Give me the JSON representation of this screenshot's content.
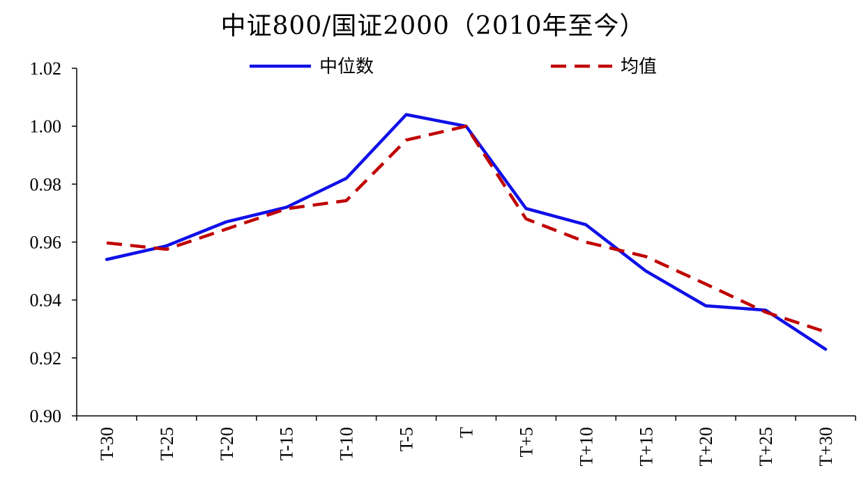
{
  "chart_data": {
    "type": "line",
    "title": "中证800/国证2000（2010年至今）",
    "categories": [
      "T-30",
      "T-25",
      "T-20",
      "T-15",
      "T-10",
      "T-5",
      "T",
      "T+5",
      "T+10",
      "T+15",
      "T+20",
      "T+25",
      "T+30"
    ],
    "series": [
      {
        "name": "中位数",
        "values": [
          0.954,
          0.9587,
          0.967,
          0.972,
          0.982,
          1.004,
          1.0,
          0.9716,
          0.966,
          0.95,
          0.938,
          0.9365,
          0.923
        ],
        "color": "#1010e8",
        "dash": "solid"
      },
      {
        "name": "均值",
        "values": [
          0.9597,
          0.9575,
          0.9645,
          0.9715,
          0.9743,
          0.9952,
          1.0,
          0.968,
          0.96,
          0.955,
          0.9455,
          0.9358,
          0.929
        ],
        "color": "#c00000",
        "dash": "dashed"
      }
    ],
    "ylim": [
      0.9,
      1.02
    ],
    "yticks": [
      "0.90",
      "0.92",
      "0.94",
      "0.96",
      "0.98",
      "1.00",
      "1.02"
    ],
    "xlabel": "",
    "ylabel": "",
    "legend_position": "top",
    "grid": false
  }
}
